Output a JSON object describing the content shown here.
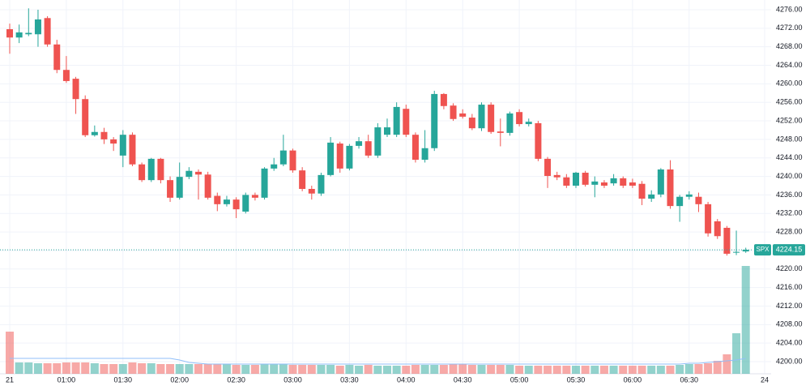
{
  "chart_data": {
    "type": "candlestick",
    "symbol": "SPX",
    "last_price": 4224.15,
    "up_color": "#26a69a",
    "down_color": "#ef5350",
    "grid": true,
    "open": [
      4271.8,
      4270.0,
      4270.7,
      4270.7,
      4274.2,
      4268.5,
      4263.0,
      4261.1,
      4256.7,
      4248.9,
      4249.6,
      4248.0,
      4244.5,
      4249.0,
      4242.6,
      4239.2,
      4243.8,
      4239.2,
      4235.4,
      4239.9,
      4241.0,
      4240.4,
      4235.8,
      4234.0,
      4235.0,
      4232.4,
      4236.0,
      4235.4,
      4241.7,
      4242.6,
      4245.6,
      4241.3,
      4237.3,
      4236.3,
      4240.3,
      4247.1,
      4241.7,
      4246.6,
      4247.6,
      4244.5,
      4249.0,
      4249.0,
      4254.6,
      4249.0,
      4243.6,
      4246.1,
      4257.8,
      4255.3,
      4253.6,
      4252.7,
      4250.4,
      4255.5,
      4249.7,
      4249.4,
      4253.9,
      4251.3,
      4251.5,
      4243.8,
      4240.3,
      4239.8,
      4238.0,
      4240.8,
      4238.2,
      4238.7,
      4238.5,
      4239.6,
      4238.7,
      4238.4,
      4235.2,
      4236.1,
      4241.5,
      4233.6,
      4235.6,
      4235.6,
      4234.0,
      4230.3,
      4228.9,
      4223.6,
      4223.8
    ],
    "high": [
      4273.0,
      4272.8,
      4276.3,
      4276.0,
      4274.6,
      4269.5,
      4266.0,
      4261.5,
      4257.5,
      4251.0,
      4250.5,
      4248.5,
      4250.0,
      4249.5,
      4243.0,
      4244.0,
      4244.0,
      4240.0,
      4243.0,
      4242.0,
      4241.5,
      4241.0,
      4236.5,
      4235.8,
      4235.5,
      4236.5,
      4236.5,
      4242.0,
      4244.0,
      4249.0,
      4246.0,
      4242.0,
      4238.0,
      4240.8,
      4248.5,
      4247.5,
      4247.0,
      4248.5,
      4249.0,
      4251.5,
      4252.5,
      4256.0,
      4255.5,
      4249.5,
      4250.0,
      4258.5,
      4258.0,
      4255.8,
      4254.5,
      4253.5,
      4256.0,
      4256.0,
      4252.5,
      4254.0,
      4254.5,
      4252.5,
      4252.0,
      4244.2,
      4241.0,
      4240.5,
      4241.0,
      4241.2,
      4240.0,
      4239.2,
      4240.5,
      4240.0,
      4239.5,
      4239.0,
      4237.0,
      4241.8,
      4243.5,
      4236.0,
      4236.8,
      4236.5,
      4234.5,
      4230.8,
      4229.3,
      4228.3,
      4224.6
    ],
    "low": [
      4266.5,
      4268.8,
      4270.3,
      4268.0,
      4268.0,
      4262.3,
      4260.2,
      4253.5,
      4248.5,
      4248.6,
      4247.0,
      4245.5,
      4242.0,
      4242.2,
      4238.8,
      4238.8,
      4238.5,
      4234.5,
      4235.0,
      4239.4,
      4235.0,
      4235.0,
      4232.5,
      4233.5,
      4231.0,
      4232.0,
      4234.8,
      4235.0,
      4241.2,
      4242.2,
      4240.8,
      4236.8,
      4235.0,
      4235.8,
      4240.0,
      4240.8,
      4241.3,
      4246.0,
      4244.0,
      4244.0,
      4248.5,
      4248.5,
      4248.5,
      4243.0,
      4243.0,
      4245.5,
      4254.5,
      4252.0,
      4252.5,
      4250.0,
      4249.8,
      4249.2,
      4246.5,
      4248.8,
      4250.8,
      4250.8,
      4243.3,
      4237.5,
      4239.2,
      4237.5,
      4237.5,
      4237.8,
      4235.5,
      4237.5,
      4238.0,
      4237.5,
      4237.5,
      4233.8,
      4234.5,
      4235.5,
      4233.0,
      4230.2,
      4235.0,
      4232.3,
      4227.0,
      4226.5,
      4222.9,
      4223.0,
      4223.5
    ],
    "close": [
      4270.0,
      4271.1,
      4271.0,
      4273.9,
      4268.5,
      4263.0,
      4260.6,
      4256.7,
      4248.9,
      4249.6,
      4248.0,
      4247.1,
      4249.0,
      4242.6,
      4239.2,
      4243.8,
      4239.2,
      4235.4,
      4239.9,
      4241.2,
      4240.4,
      4235.4,
      4234.0,
      4235.0,
      4232.9,
      4236.0,
      4235.4,
      4241.7,
      4242.6,
      4245.6,
      4241.3,
      4237.3,
      4236.3,
      4240.3,
      4247.3,
      4241.7,
      4246.6,
      4247.6,
      4244.5,
      4250.6,
      4250.6,
      4255.0,
      4249.0,
      4243.6,
      4246.1,
      4257.8,
      4255.2,
      4252.4,
      4252.9,
      4250.4,
      4255.5,
      4249.6,
      4249.4,
      4253.6,
      4251.3,
      4251.8,
      4243.8,
      4240.1,
      4239.8,
      4238.0,
      4240.8,
      4238.2,
      4238.9,
      4238.0,
      4239.6,
      4238.0,
      4238.0,
      4235.2,
      4236.1,
      4241.5,
      4233.6,
      4235.6,
      4236.1,
      4234.0,
      4227.7,
      4227.1,
      4223.3,
      4223.7,
      4224.15
    ],
    "volume": [
      52,
      14,
      14,
      13,
      13,
      13,
      14,
      14,
      14,
      13,
      12,
      12,
      12,
      14,
      13,
      13,
      12,
      12,
      12,
      12,
      12,
      12,
      12,
      12,
      11,
      11,
      11,
      12,
      12,
      12,
      11,
      11,
      11,
      11,
      11,
      10,
      11,
      10,
      11,
      10,
      10,
      10,
      10,
      11,
      11,
      11,
      11,
      12,
      12,
      11,
      11,
      11,
      11,
      11,
      10,
      10,
      10,
      10,
      10,
      10,
      10,
      10,
      10,
      10,
      10,
      10,
      10,
      10,
      10,
      10,
      10,
      11,
      12,
      12,
      13,
      16,
      24,
      50,
      133
    ],
    "volume_ma": [
      19,
      19,
      19,
      19,
      19,
      19,
      19,
      19,
      19,
      19,
      19,
      19,
      19,
      19,
      19,
      19,
      19,
      19,
      17,
      14,
      13,
      12,
      12,
      12,
      12,
      12,
      12,
      12,
      12,
      12,
      12,
      12,
      12,
      12,
      12,
      12,
      12,
      12,
      12,
      12,
      12,
      12,
      12,
      12,
      12,
      12,
      12,
      12,
      12,
      12,
      12,
      12,
      12,
      12,
      12,
      12,
      12,
      12,
      12,
      12,
      12,
      12,
      12,
      12,
      12,
      12,
      12,
      12,
      12,
      12,
      12,
      12,
      13,
      13,
      14,
      15,
      16,
      17,
      19
    ],
    "volume_lim": [
      0,
      140
    ],
    "ylim": [
      4200,
      4276
    ],
    "yticks": [
      {
        "value": 4200,
        "label": "4200.00"
      },
      {
        "value": 4204,
        "label": "4204.00"
      },
      {
        "value": 4208,
        "label": "4208.00"
      },
      {
        "value": 4212,
        "label": "4212.00"
      },
      {
        "value": 4216,
        "label": "4216.00"
      },
      {
        "value": 4220,
        "label": "4220.00"
      },
      {
        "value": 4224,
        "label": "4224.00"
      },
      {
        "value": 4228,
        "label": "4228.00"
      },
      {
        "value": 4232,
        "label": "4232.00"
      },
      {
        "value": 4236,
        "label": "4236.00"
      },
      {
        "value": 4240,
        "label": "4240.00"
      },
      {
        "value": 4244,
        "label": "4244.00"
      },
      {
        "value": 4248,
        "label": "4248.00"
      },
      {
        "value": 4252,
        "label": "4252.00"
      },
      {
        "value": 4256,
        "label": "4256.00"
      },
      {
        "value": 4260,
        "label": "4260.00"
      },
      {
        "value": 4264,
        "label": "4264.00"
      },
      {
        "value": 4268,
        "label": "4268.00"
      },
      {
        "value": 4272,
        "label": "4272.00"
      },
      {
        "value": 4276,
        "label": "4276.00"
      }
    ],
    "xticks": [
      {
        "value": 0,
        "label": "21"
      },
      {
        "value": 6,
        "label": "01:00"
      },
      {
        "value": 12,
        "label": "01:30"
      },
      {
        "value": 18,
        "label": "02:00"
      },
      {
        "value": 24,
        "label": "02:30"
      },
      {
        "value": 30,
        "label": "03:00"
      },
      {
        "value": 36,
        "label": "03:30"
      },
      {
        "value": 42,
        "label": "04:00"
      },
      {
        "value": 48,
        "label": "04:30"
      },
      {
        "value": 54,
        "label": "05:00"
      },
      {
        "value": 60,
        "label": "05:30"
      },
      {
        "value": 66,
        "label": "06:00"
      },
      {
        "value": 72,
        "label": "06:30"
      },
      {
        "value": 80,
        "label": "24"
      }
    ]
  }
}
